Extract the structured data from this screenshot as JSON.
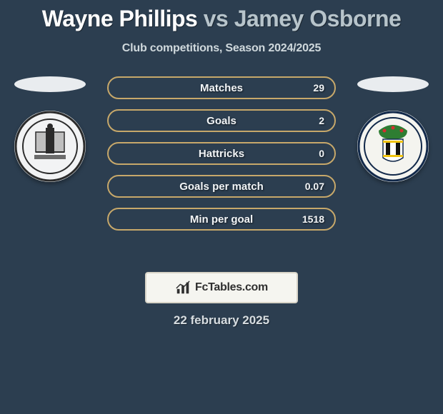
{
  "background_color": "#2c3e50",
  "title": {
    "player1": "Wayne Phillips",
    "vs": "vs",
    "player2": "Jamey Osborne",
    "player1_color": "#ffffff",
    "player2_color": "#b7c4cb",
    "fontsize": 32
  },
  "subtitle": "Club competitions, Season 2024/2025",
  "subtitle_color": "#cfd8dc",
  "subtitle_fontsize": 16,
  "stats": {
    "type": "horizontal-stat-bars",
    "bar_border_color": "#c7a86a",
    "bar_fill_color": "#b38b42",
    "label_color": "#f2f5f7",
    "label_fontsize": 15,
    "value_fontsize": 14,
    "rows": [
      {
        "label": "Matches",
        "right_value": "29",
        "left_fill_pct": 0
      },
      {
        "label": "Goals",
        "right_value": "2",
        "left_fill_pct": 0
      },
      {
        "label": "Hattricks",
        "right_value": "0",
        "left_fill_pct": 0
      },
      {
        "label": "Goals per match",
        "right_value": "0.07",
        "left_fill_pct": 0
      },
      {
        "label": "Min per goal",
        "right_value": "1518",
        "left_fill_pct": 0
      }
    ]
  },
  "badges": {
    "left": {
      "ellipse_color": "#e9ecef",
      "crest_bg": "#eef1f2",
      "crest_label": "gateshead-crest"
    },
    "right": {
      "ellipse_color": "#e9ecef",
      "crest_bg": "#eef1f2",
      "crest_label": "solihull-moors-crest"
    }
  },
  "brand": {
    "box_bg": "#f5f5f0",
    "box_border": "#d8d4c8",
    "icon": "bar-chart-icon",
    "text": "FcTables.com",
    "text_color": "#2f2f2f"
  },
  "date": "22 february 2025",
  "date_color": "#d7dde1",
  "date_fontsize": 17
}
